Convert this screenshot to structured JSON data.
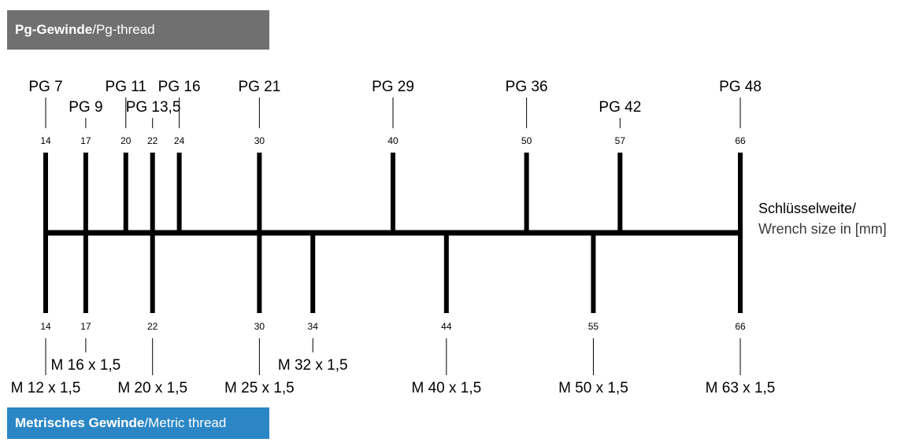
{
  "pg_banner": {
    "main": "Pg-Gewinde",
    "separator": " / ",
    "sub": "Pg-thread",
    "color": "#707070"
  },
  "metric_banner": {
    "main": "Metrisches Gewinde",
    "separator": " / ",
    "sub": "Metric thread",
    "color": "#2b86c6"
  },
  "axis_legend": {
    "line1": "Schlüsselweite/",
    "line2": "Wrench size in [mm]"
  },
  "scale": {
    "min": 14,
    "max": 66
  },
  "pg_threads": [
    {
      "label": "PG 7",
      "size": 14,
      "label_row": 1
    },
    {
      "label": "PG 9",
      "size": 17,
      "label_row": 2
    },
    {
      "label": "PG 11",
      "size": 20,
      "label_row": 1
    },
    {
      "label": "PG 13,5",
      "size": 22,
      "label_row": 2
    },
    {
      "label": "PG 16",
      "size": 24,
      "label_row": 1
    },
    {
      "label": "PG 21",
      "size": 30,
      "label_row": 1
    },
    {
      "label": "PG 29",
      "size": 40,
      "label_row": 1
    },
    {
      "label": "PG 36",
      "size": 50,
      "label_row": 1
    },
    {
      "label": "PG 42",
      "size": 57,
      "label_row": 2
    },
    {
      "label": "PG 48",
      "size": 66,
      "label_row": 1
    }
  ],
  "metric_threads": [
    {
      "label": "M 12 x 1,5",
      "size": 14,
      "label_row": 2
    },
    {
      "label": "M 16 x 1,5",
      "size": 17,
      "label_row": 1
    },
    {
      "label": "M 20 x 1,5",
      "size": 22,
      "label_row": 2
    },
    {
      "label": "M 25 x 1,5",
      "size": 30,
      "label_row": 2
    },
    {
      "label": "M 32 x 1,5",
      "size": 34,
      "label_row": 1
    },
    {
      "label": "M 40 x 1,5",
      "size": 44,
      "label_row": 2
    },
    {
      "label": "M 50 x 1,5",
      "size": 55,
      "label_row": 2
    },
    {
      "label": "M 63 x 1,5",
      "size": 66,
      "label_row": 2
    }
  ]
}
